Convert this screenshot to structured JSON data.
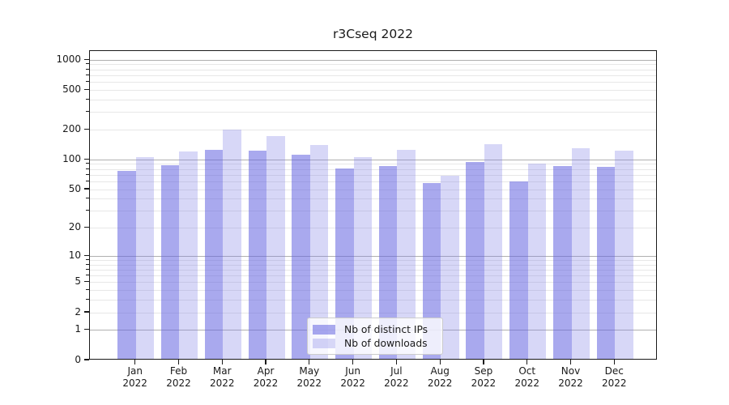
{
  "chart_data": {
    "type": "bar",
    "title": "r3Cseq 2022",
    "x_months": [
      "Jan",
      "Feb",
      "Mar",
      "Apr",
      "May",
      "Jun",
      "Jul",
      "Aug",
      "Sep",
      "Oct",
      "Nov",
      "Dec"
    ],
    "x_year": "2022",
    "series": [
      {
        "name": "Nb of distinct IPs",
        "color": "#a9a9ee",
        "fill": "rgba(99,99,224,0.55)",
        "values": [
          78,
          88,
          125,
          123,
          112,
          82,
          87,
          58,
          95,
          60,
          86,
          85
        ]
      },
      {
        "name": "Nb of downloads",
        "color": "#d7d7f7",
        "fill": "rgba(122,122,228,0.30)",
        "values": [
          106,
          122,
          200,
          173,
          141,
          107,
          127,
          69,
          143,
          91,
          131,
          124
        ]
      }
    ],
    "yscale": "log1p",
    "ylim": [
      0,
      1235
    ],
    "yticks": [
      0,
      1,
      2,
      5,
      10,
      20,
      50,
      100,
      200,
      500,
      1000
    ],
    "grid": {
      "major_lines": [
        1,
        10,
        100,
        1000
      ],
      "minor_multiples": [
        2,
        3,
        4,
        5,
        6,
        7,
        8,
        9
      ],
      "major_color": "#b0b0b0",
      "minor_color": "#e7e7e7"
    },
    "legend_position": "lower center",
    "axis_color": "#1a1a1a"
  }
}
